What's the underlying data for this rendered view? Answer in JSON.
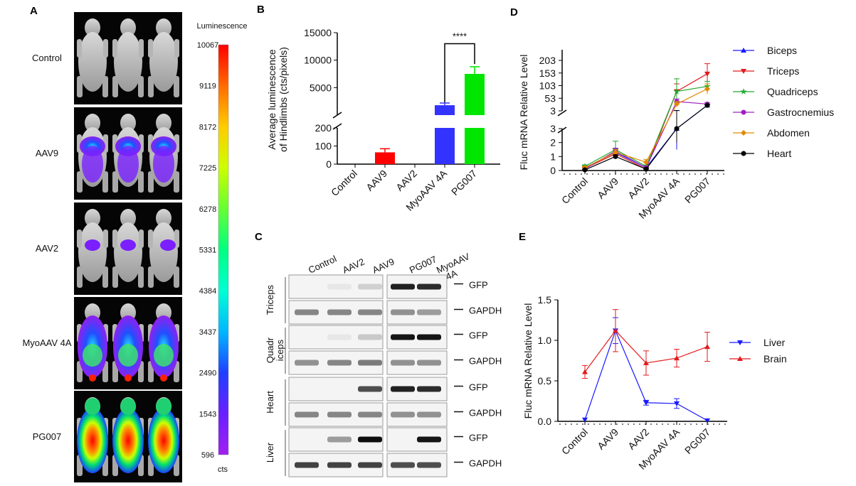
{
  "panels": {
    "a": "A",
    "b": "B",
    "c": "C",
    "d": "D",
    "e": "E"
  },
  "panel_a": {
    "groups": [
      "Control",
      "AAV9",
      "AAV2",
      "MyoAAV 4A",
      "PG007"
    ],
    "colorbar": {
      "title": "Luminescence",
      "ticks": [
        "10067",
        "9119",
        "8172",
        "7225",
        "6278",
        "5331",
        "4384",
        "3437",
        "2490",
        "1543",
        "596"
      ],
      "unit": "cts",
      "gradient": [
        "#ff0000",
        "#ff6a00",
        "#ffcc00",
        "#ccff00",
        "#66ff33",
        "#00ff80",
        "#00ffd5",
        "#00b7ff",
        "#2040ff",
        "#6a1fff",
        "#a020f0"
      ]
    }
  },
  "panel_c": {
    "lanes": [
      "Control",
      "AAV2",
      "AAV9",
      "PG007",
      "MyoAAV 4A"
    ],
    "tissues": [
      {
        "name": "Triceps",
        "gfp": [
          0.0,
          0.02,
          0.12,
          0.9,
          0.85
        ],
        "gapdh": [
          0.45,
          0.45,
          0.45,
          0.4,
          0.35
        ]
      },
      {
        "name": "Quadriceps",
        "gfp": [
          0.0,
          0.02,
          0.15,
          0.95,
          0.95
        ],
        "gapdh": [
          0.4,
          0.45,
          0.5,
          0.4,
          0.4
        ]
      },
      {
        "name": "Heart",
        "gfp": [
          0.0,
          0.0,
          0.7,
          0.9,
          0.85
        ],
        "gapdh": [
          0.45,
          0.45,
          0.45,
          0.4,
          0.4
        ]
      },
      {
        "name": "Liver",
        "gfp": [
          0.0,
          0.35,
          0.98,
          0.0,
          0.95
        ],
        "gapdh": [
          0.75,
          0.75,
          0.75,
          0.7,
          0.7
        ]
      }
    ],
    "band_labels": [
      "GFP",
      "GAPDH"
    ]
  },
  "chart_data": [
    {
      "id": "B",
      "type": "bar",
      "ylabel_line1": "Average luminescence",
      "ylabel_line2": "of Hindlimbs (cts/pixels)",
      "categories": [
        "Control",
        "AAV9",
        "AAV2",
        "MyoAAV 4A",
        "PG007"
      ],
      "values": [
        0,
        65,
        0,
        1800,
        7500
      ],
      "errors": [
        0,
        20,
        0,
        400,
        1300
      ],
      "colors": [
        "#ff0000",
        "#ff0000",
        "#ff0000",
        "#3333ff",
        "#00e600"
      ],
      "ylim_lower": [
        0,
        200
      ],
      "ylim_upper": [
        0,
        15000
      ],
      "yticks_lower": [
        "0",
        "100",
        "200"
      ],
      "yticks_upper": [
        "5000",
        "10000",
        "15000"
      ],
      "annotation": "****"
    },
    {
      "id": "D",
      "type": "line",
      "ylabel": "Fluc mRNA Relative Level",
      "categories": [
        "Control",
        "AAV9",
        "AAV2",
        "MyoAAV 4A",
        "PG007"
      ],
      "yticks_lower": [
        "0",
        "1",
        "2",
        "3"
      ],
      "yticks_upper": [
        "3",
        "53",
        "103",
        "153",
        "203"
      ],
      "series": [
        {
          "name": "Biceps",
          "color": "#1a1aff",
          "marker": "triangle-up",
          "values": [
            0.2,
            1.3,
            0.2,
            3.0,
            25.0
          ],
          "errors": [
            0.2,
            0.2,
            0.1,
            1.5,
            2.0
          ]
        },
        {
          "name": "Triceps",
          "color": "#e31a1c",
          "marker": "triangle-down",
          "values": [
            0.15,
            1.2,
            0.1,
            80.0,
            150.0
          ],
          "errors": [
            0.1,
            0.2,
            0.1,
            30.0,
            40.0
          ]
        },
        {
          "name": "Quadriceps",
          "color": "#1fa831",
          "marker": "star",
          "values": [
            0.3,
            1.5,
            0.3,
            80.0,
            100.0
          ],
          "errors": [
            0.1,
            0.6,
            0.1,
            50.0,
            20.0
          ]
        },
        {
          "name": "Gastrocnemius",
          "color": "#a020c0",
          "marker": "circle",
          "values": [
            0.1,
            1.4,
            0.2,
            40.0,
            30.0
          ],
          "errors": [
            0.1,
            0.2,
            0.1,
            10.0,
            5.0
          ]
        },
        {
          "name": "Abdomen",
          "color": "#e08a00",
          "marker": "diamond",
          "values": [
            0.2,
            1.3,
            0.6,
            30.0,
            90.0
          ],
          "errors": [
            0.1,
            0.2,
            0.2,
            10.0,
            20.0
          ]
        },
        {
          "name": "Heart",
          "color": "#000000",
          "marker": "circle",
          "values": [
            0.05,
            1.0,
            0.1,
            3.0,
            25.0
          ],
          "errors": [
            0.05,
            0.1,
            0.05,
            1.0,
            2.0
          ]
        }
      ]
    },
    {
      "id": "E",
      "type": "line",
      "ylabel": "Fluc mRNA Relative Level",
      "categories": [
        "Control",
        "AAV9",
        "AAV2",
        "MyoAAV 4A",
        "PG007"
      ],
      "ylim": [
        0,
        1.5
      ],
      "yticks": [
        "0.0",
        "0.5",
        "1.0",
        "1.5"
      ],
      "series": [
        {
          "name": "Liver",
          "color": "#1a1aff",
          "marker": "triangle-down",
          "values": [
            0.02,
            1.12,
            0.23,
            0.22,
            0.01
          ],
          "errors": [
            0.0,
            0.16,
            0.03,
            0.06,
            0.0
          ]
        },
        {
          "name": "Brain",
          "color": "#e31a1c",
          "marker": "triangle-up",
          "values": [
            0.61,
            1.12,
            0.72,
            0.78,
            0.92
          ],
          "errors": [
            0.08,
            0.26,
            0.15,
            0.11,
            0.18
          ]
        }
      ]
    }
  ]
}
